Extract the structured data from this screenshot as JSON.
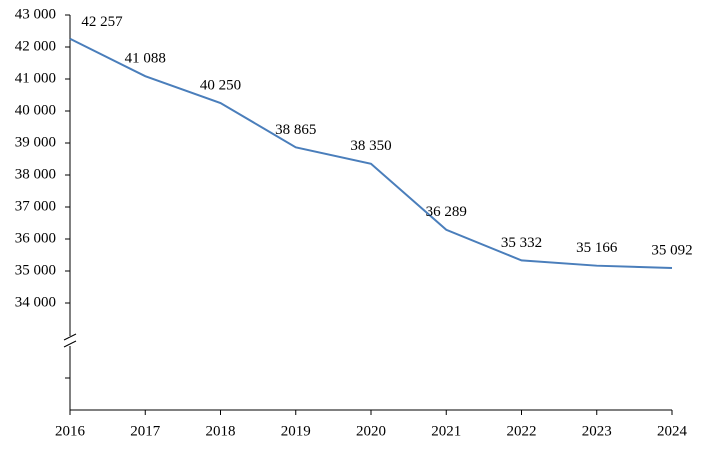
{
  "chart_data": {
    "type": "line",
    "categories": [
      "2016",
      "2017",
      "2018",
      "2019",
      "2020",
      "2021",
      "2022",
      "2023",
      "2024"
    ],
    "series": [
      {
        "color": "#4a7ebb",
        "values": [
          42257,
          41088,
          40250,
          38865,
          38350,
          36289,
          35332,
          35166,
          35092
        ],
        "value_labels": [
          "42 257",
          "41 088",
          "40 250",
          "38 865",
          "38 350",
          "36 289",
          "35 332",
          "35 166",
          "35 092"
        ]
      }
    ],
    "ylim": [
      34000,
      43000
    ],
    "yticks": [
      {
        "value": 34000,
        "label": "34 000"
      },
      {
        "value": 35000,
        "label": "35 000"
      },
      {
        "value": 36000,
        "label": "36 000"
      },
      {
        "value": 37000,
        "label": "37 000"
      },
      {
        "value": 38000,
        "label": "38 000"
      },
      {
        "value": 39000,
        "label": "39 000"
      },
      {
        "value": 40000,
        "label": "40 000"
      },
      {
        "value": 41000,
        "label": "41 000"
      },
      {
        "value": 42000,
        "label": "42 000"
      },
      {
        "value": 43000,
        "label": "43 000"
      }
    ],
    "grid": false
  }
}
